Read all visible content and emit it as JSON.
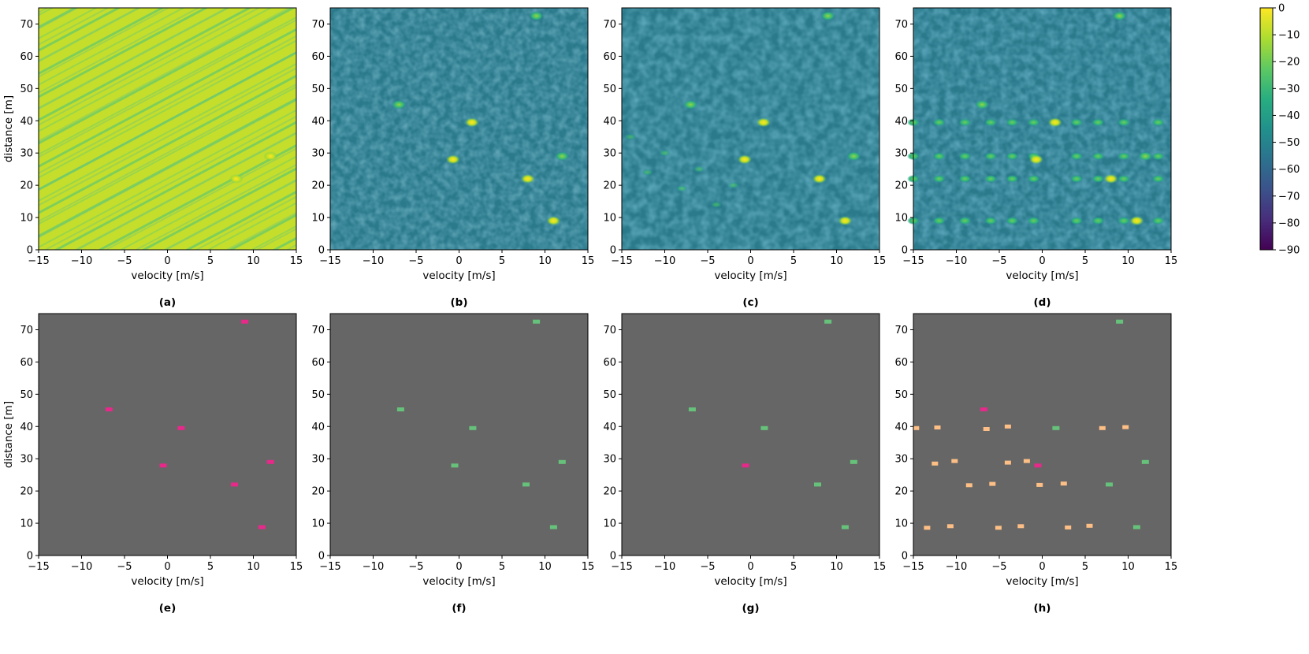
{
  "figure": {
    "panel_labels": [
      "(a)",
      "(b)",
      "(c)",
      "(d)",
      "(e)",
      "(f)",
      "(g)",
      "(h)"
    ],
    "xlabel": "velocity [m/s]",
    "ylabel": "distance [m]",
    "colorbar": {
      "ticks": [
        "0",
        "−10",
        "−20",
        "−30",
        "−40",
        "−50",
        "−60",
        "−70",
        "−80",
        "−90"
      ],
      "range": [
        -90,
        0
      ],
      "colormap": "viridis"
    }
  },
  "colors": {
    "mask_background": "#666666",
    "magenta": "#e7298a",
    "green": "#66c27a",
    "orange": "#fdbf85"
  },
  "chart_data": [
    {
      "panel": "(a)",
      "type": "heatmap",
      "xlabel": "velocity [m/s]",
      "ylabel": "distance [m]",
      "xlim": [
        -15,
        15
      ],
      "ylim": [
        0,
        75
      ],
      "xticks": [
        -15,
        -10,
        -5,
        0,
        5,
        10,
        15
      ],
      "yticks": [
        0,
        10,
        20,
        30,
        40,
        50,
        60,
        70
      ],
      "value_range_dB": [
        -90,
        0
      ],
      "description": "strong diagonal interference pattern, values mostly around -10 to -20 dB",
      "targets": [
        {
          "v": 8,
          "d": 22
        },
        {
          "v": 12,
          "d": 29
        }
      ]
    },
    {
      "panel": "(b)",
      "type": "heatmap",
      "xlabel": "velocity [m/s]",
      "xlim": [
        -15,
        15
      ],
      "ylim": [
        0,
        75
      ],
      "xticks": [
        -15,
        -10,
        -5,
        0,
        5,
        10,
        15
      ],
      "yticks": [
        0,
        10,
        20,
        30,
        40,
        50,
        60,
        70
      ],
      "value_range_dB": [
        -90,
        0
      ],
      "targets": [
        {
          "v": 9,
          "d": 72.5
        },
        {
          "v": -7,
          "d": 45
        },
        {
          "v": 1.5,
          "d": 39.5
        },
        {
          "v": -0.7,
          "d": 28
        },
        {
          "v": 12,
          "d": 29
        },
        {
          "v": 8,
          "d": 22
        },
        {
          "v": 11,
          "d": 9
        }
      ]
    },
    {
      "panel": "(c)",
      "type": "heatmap",
      "xlabel": "velocity [m/s]",
      "xlim": [
        -15,
        15
      ],
      "ylim": [
        0,
        75
      ],
      "xticks": [
        -15,
        -10,
        -5,
        0,
        5,
        10,
        15
      ],
      "yticks": [
        0,
        10,
        20,
        30,
        40,
        50,
        60,
        70
      ],
      "value_range_dB": [
        -90,
        0
      ],
      "targets": [
        {
          "v": 9,
          "d": 72.5
        },
        {
          "v": -7,
          "d": 45
        },
        {
          "v": 1.5,
          "d": 39.5
        },
        {
          "v": -0.7,
          "d": 28
        },
        {
          "v": 12,
          "d": 29
        },
        {
          "v": 8,
          "d": 22
        },
        {
          "v": 11,
          "d": 9
        }
      ]
    },
    {
      "panel": "(d)",
      "type": "heatmap",
      "xlabel": "velocity [m/s]",
      "xlim": [
        -15,
        15
      ],
      "ylim": [
        0,
        75
      ],
      "xticks": [
        -15,
        -10,
        -5,
        0,
        5,
        10,
        15
      ],
      "yticks": [
        0,
        10,
        20,
        30,
        40,
        50,
        60,
        70
      ],
      "value_range_dB": [
        -90,
        0
      ],
      "targets": [
        {
          "v": 9,
          "d": 72.5
        },
        {
          "v": -7,
          "d": 45
        },
        {
          "v": 1.5,
          "d": 39.5
        },
        {
          "v": -0.7,
          "d": 28
        },
        {
          "v": 12,
          "d": 29
        },
        {
          "v": 8,
          "d": 22
        },
        {
          "v": 11,
          "d": 9
        }
      ],
      "ghost_rows_d": [
        39.5,
        29,
        22,
        9
      ],
      "ghost_v": [
        -15,
        -12,
        -9,
        -6,
        -3.5,
        -1,
        4,
        6.5,
        9.5,
        13.5
      ]
    },
    {
      "panel": "(e)",
      "type": "heatmap",
      "xlabel": "velocity [m/s]",
      "ylabel": "distance [m]",
      "xlim": [
        -15,
        15
      ],
      "ylim": [
        0,
        75
      ],
      "xticks": [
        -15,
        -10,
        -5,
        0,
        5,
        10,
        15
      ],
      "yticks": [
        0,
        10,
        20,
        30,
        40,
        50,
        60,
        70
      ],
      "detections": [
        {
          "v": 9,
          "d": 72.5,
          "c": "magenta"
        },
        {
          "v": -6.8,
          "d": 45.3,
          "c": "magenta"
        },
        {
          "v": 1.6,
          "d": 39.5,
          "c": "magenta"
        },
        {
          "v": -0.5,
          "d": 27.9,
          "c": "magenta"
        },
        {
          "v": 12,
          "d": 29,
          "c": "magenta"
        },
        {
          "v": 7.8,
          "d": 22,
          "c": "magenta"
        },
        {
          "v": 11,
          "d": 8.8,
          "c": "magenta"
        }
      ]
    },
    {
      "panel": "(f)",
      "type": "heatmap",
      "xlabel": "velocity [m/s]",
      "xlim": [
        -15,
        15
      ],
      "ylim": [
        0,
        75
      ],
      "xticks": [
        -15,
        -10,
        -5,
        0,
        5,
        10,
        15
      ],
      "yticks": [
        0,
        10,
        20,
        30,
        40,
        50,
        60,
        70
      ],
      "detections": [
        {
          "v": 9,
          "d": 72.5,
          "c": "green"
        },
        {
          "v": -6.8,
          "d": 45.3,
          "c": "green"
        },
        {
          "v": 1.6,
          "d": 39.5,
          "c": "green"
        },
        {
          "v": -0.5,
          "d": 27.9,
          "c": "green"
        },
        {
          "v": 12,
          "d": 29,
          "c": "green"
        },
        {
          "v": 7.8,
          "d": 22,
          "c": "green"
        },
        {
          "v": 11,
          "d": 8.8,
          "c": "green"
        }
      ]
    },
    {
      "panel": "(g)",
      "type": "heatmap",
      "xlabel": "velocity [m/s]",
      "xlim": [
        -15,
        15
      ],
      "ylim": [
        0,
        75
      ],
      "xticks": [
        -15,
        -10,
        -5,
        0,
        5,
        10,
        15
      ],
      "yticks": [
        0,
        10,
        20,
        30,
        40,
        50,
        60,
        70
      ],
      "detections": [
        {
          "v": 9,
          "d": 72.5,
          "c": "green"
        },
        {
          "v": -6.8,
          "d": 45.3,
          "c": "green"
        },
        {
          "v": 1.6,
          "d": 39.5,
          "c": "green"
        },
        {
          "v": -0.6,
          "d": 27.9,
          "c": "magenta"
        },
        {
          "v": 12,
          "d": 29,
          "c": "green"
        },
        {
          "v": 7.8,
          "d": 22,
          "c": "green"
        },
        {
          "v": 11,
          "d": 8.8,
          "c": "green"
        }
      ]
    },
    {
      "panel": "(h)",
      "type": "heatmap",
      "xlabel": "velocity [m/s]",
      "xlim": [
        -15,
        15
      ],
      "ylim": [
        0,
        75
      ],
      "xticks": [
        -15,
        -10,
        -5,
        0,
        5,
        10,
        15
      ],
      "yticks": [
        0,
        10,
        20,
        30,
        40,
        50,
        60,
        70
      ],
      "detections": [
        {
          "v": 9,
          "d": 72.5,
          "c": "green"
        },
        {
          "v": -6.8,
          "d": 45.3,
          "c": "magenta"
        },
        {
          "v": 1.6,
          "d": 39.5,
          "c": "green"
        },
        {
          "v": -0.5,
          "d": 27.9,
          "c": "magenta"
        },
        {
          "v": 12,
          "d": 29,
          "c": "green"
        },
        {
          "v": 7.8,
          "d": 22,
          "c": "green"
        },
        {
          "v": 11,
          "d": 8.8,
          "c": "green"
        },
        {
          "v": -14.7,
          "d": 39.5,
          "c": "orange"
        },
        {
          "v": -12.2,
          "d": 39.7,
          "c": "orange"
        },
        {
          "v": -6.5,
          "d": 39.2,
          "c": "orange"
        },
        {
          "v": -4,
          "d": 40,
          "c": "orange"
        },
        {
          "v": 9.7,
          "d": 39.8,
          "c": "orange"
        },
        {
          "v": 7,
          "d": 39.5,
          "c": "orange"
        },
        {
          "v": -12.5,
          "d": 28.5,
          "c": "orange"
        },
        {
          "v": -10.2,
          "d": 29.3,
          "c": "orange"
        },
        {
          "v": -4,
          "d": 28.8,
          "c": "orange"
        },
        {
          "v": -1.8,
          "d": 29.3,
          "c": "orange"
        },
        {
          "v": -8.5,
          "d": 21.8,
          "c": "orange"
        },
        {
          "v": -5.8,
          "d": 22.2,
          "c": "orange"
        },
        {
          "v": -0.3,
          "d": 21.9,
          "c": "orange"
        },
        {
          "v": 2.5,
          "d": 22.3,
          "c": "orange"
        },
        {
          "v": -13.4,
          "d": 8.6,
          "c": "orange"
        },
        {
          "v": -10.7,
          "d": 9.1,
          "c": "orange"
        },
        {
          "v": -5.1,
          "d": 8.6,
          "c": "orange"
        },
        {
          "v": -2.5,
          "d": 9.1,
          "c": "orange"
        },
        {
          "v": 3,
          "d": 8.7,
          "c": "orange"
        },
        {
          "v": 5.5,
          "d": 9.2,
          "c": "orange"
        }
      ]
    }
  ]
}
